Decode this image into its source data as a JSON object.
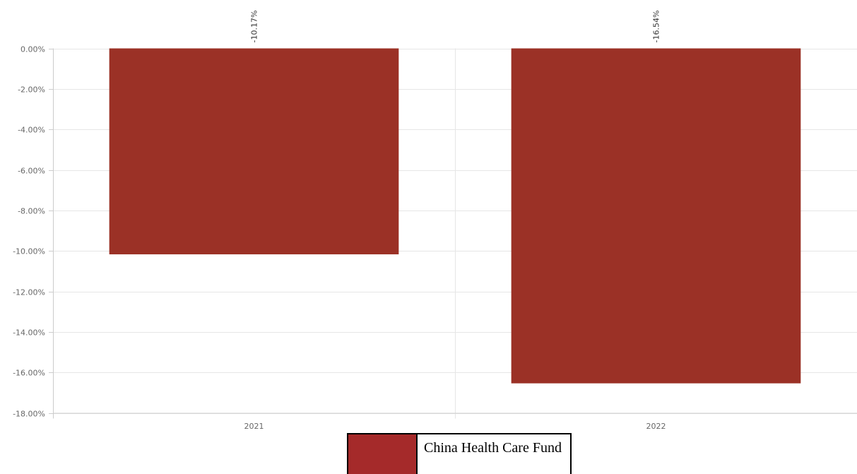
{
  "chart_data": {
    "type": "bar",
    "categories": [
      "2021",
      "2022"
    ],
    "series": [
      {
        "name": "China Health Care Fund",
        "values": [
          -10.17,
          -16.54
        ],
        "color": "#9b3126"
      }
    ],
    "data_labels": [
      "-10.17%",
      "-16.54%"
    ],
    "y_ticks": [
      0,
      -2,
      -4,
      -6,
      -8,
      -10,
      -12,
      -14,
      -16,
      -18
    ],
    "y_tick_labels": [
      "0.00%",
      "-2.00%",
      "-4.00%",
      "-6.00%",
      "-8.00%",
      "-10.00%",
      "-12.00%",
      "-14.00%",
      "-16.00%",
      "-18.00%"
    ],
    "ylim": [
      -18,
      0
    ],
    "grid": true,
    "legend_position": "bottom-center"
  },
  "legend": {
    "label": "China Health Care Fund",
    "swatch_color": "#a52a2a"
  }
}
